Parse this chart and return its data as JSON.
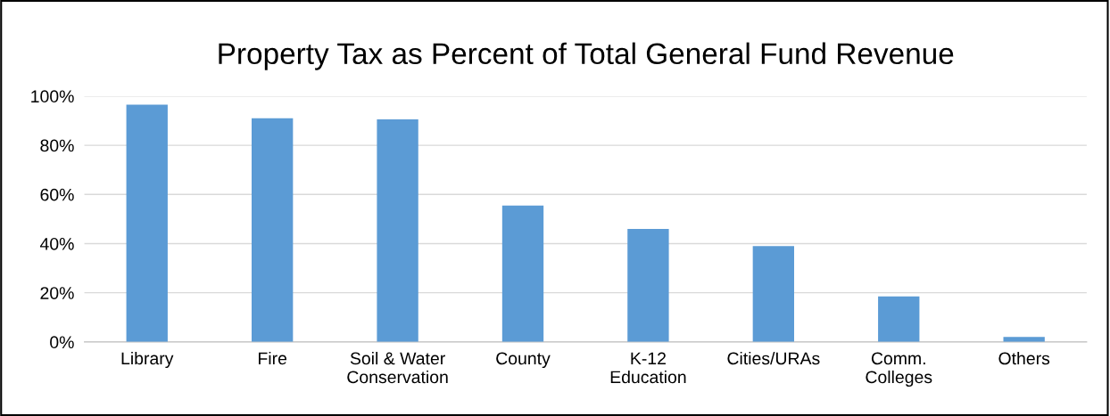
{
  "chart_data": {
    "type": "bar",
    "title": "Property Tax as Percent of Total General Fund Revenue",
    "categories": [
      "Library",
      "Fire",
      "Soil & Water\nConservation",
      "County",
      "K-12\nEducation",
      "Cities/URAs",
      "Comm.\nColleges",
      "Others"
    ],
    "values": [
      96.5,
      91,
      90.5,
      55.5,
      46,
      39,
      18.5,
      2
    ],
    "color": "#5b9bd5",
    "ylim": [
      0,
      100
    ],
    "yticks": [
      {
        "value": 0,
        "label": "0%"
      },
      {
        "value": 20,
        "label": "20%"
      },
      {
        "value": 40,
        "label": "40%"
      },
      {
        "value": 60,
        "label": "60%"
      },
      {
        "value": 80,
        "label": "80%"
      },
      {
        "value": 100,
        "label": "100%"
      }
    ],
    "grid": "y",
    "legend": false
  }
}
